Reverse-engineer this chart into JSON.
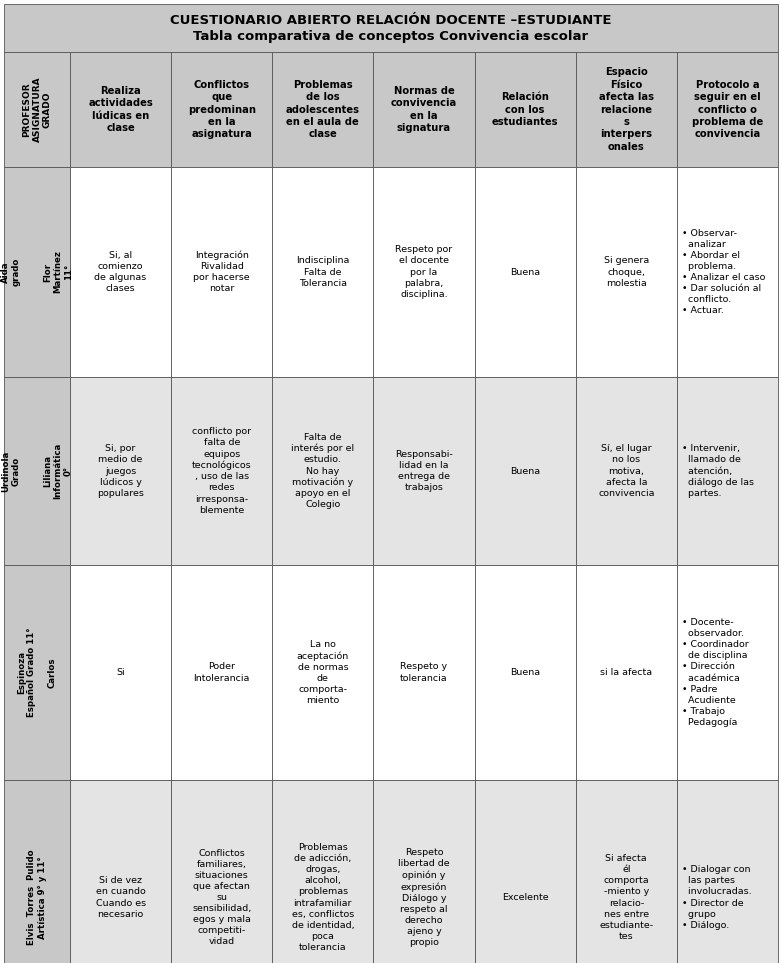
{
  "title_line1": "CUESTIONARIO ABIERTO RELACIÓN DOCENTE –ESTUDIANTE",
  "title_line2": "Tabla comparativa de conceptos Convivencia escolar",
  "header_bg": "#c8c8c8",
  "row_bg_light": "#e4e4e4",
  "row_bg_white": "#ffffff",
  "left_col_bg": "#c8c8c8",
  "col_headers": [
    "Realiza\nactividades\nlúdicas en\nclase",
    "Conflictos\nque\npredominan\nen la\nasignatura",
    "Problemas\nde los\nadolescentes\nen el aula de\nclase",
    "Normas de\nconvivencia\nen la\nsignatura",
    "Relación\ncon los\nestudiantes",
    "Espacio\nFísico\nafecta las\nrelacione\ns\ninterpers\nonales",
    "Protocolo a\nseguir en el\nconflicto o\nproblema de\nconvivencia"
  ],
  "left_header": "PROFESOR\nASIGNATURA\nGRADO",
  "rows": [
    {
      "left": "Aida\ngrado\n\n\nFlor\nMartínez\n11°",
      "cells": [
        "Si, al\ncomienzo\nde algunas\nclases",
        "Integración\nRivalidad\npor hacerse\nnotar",
        "Indisciplina\nFalta de\nTolerancia",
        "Respeto por\nel docente\npor la\npalabra,\ndisciplina.",
        "Buena",
        "Si genera\nchoque,\nmolestia",
        "• Observar-\n  analizar\n• Abordar el\n  problema.\n• Analizar el caso\n• Dar solución al\n  conflicto.\n• Actuar."
      ],
      "bg": "#ffffff"
    },
    {
      "left": "Urdinola\nGrado\n\n\nLiliana\nInformática\n0°",
      "cells": [
        "Si, por\nmedio de\njuegos\nlúdicos y\npopulares",
        "conflicto por\nfalta de\nequipos\ntecnológicos\n, uso de las\nredes\nirresponsa-\nblemente",
        "Falta de\ninterés por el\nestudio.\nNo hay\nmotivación y\napoyo en el\nColegio",
        "Responsabi-\nlidad en la\nentrega de\ntrabajos",
        "Buena",
        "Sí, el lugar\nno los\nmotiva,\nafecta la\nconvivencia",
        "• Intervenir,\n  llamado de\n  atención,\n  diálogo de las\n  partes."
      ],
      "bg": "#e4e4e4"
    },
    {
      "left": "Espinoza\nEspañol Grado 11°\n\nCarlos",
      "cells": [
        "Si",
        "Poder\nIntolerancia",
        "La no\naceptación\nde normas\nde\ncomporta-\nmiento",
        "Respeto y\ntolerancia",
        "Buena",
        "si la afecta",
        "• Docente-\n  observador.\n• Coordinador\n  de disciplina\n• Dirección\n  académica\n• Padre\n  Acudiente\n• Trabajo\n  Pedagogía"
      ],
      "bg": "#ffffff"
    },
    {
      "left": "Elvis  Torres  Pulido\nArtística 9° y 11°",
      "cells": [
        "Si de vez\nen cuando\nCuando es\nnecesario",
        "Conflictos\nfamiliares,\nsituaciones\nque afectan\nsu\nsensibilidad,\negos y mala\ncompetiti-\nvidad",
        "Problemas\nde adicción,\ndrogas,\nalcohol,\nproblemas\nintrafamiliar\nes, conflictos\nde identidad,\npoca\ntolerancia",
        "Respeto\nlibertad de\nopinión y\nexpresión\nDiálogo y\nrespeto al\nderecho\najeno y\npropio",
        "Excelente",
        "Si afecta\nél\ncomporta\n-miento y\nrelacio-\nnes entre\nestudiante-\ntes",
        "• Dialogar con\n  las partes\n  involucradas.\n• Director de\n  grupo\n• Diálogo."
      ],
      "bg": "#e4e4e4"
    }
  ]
}
